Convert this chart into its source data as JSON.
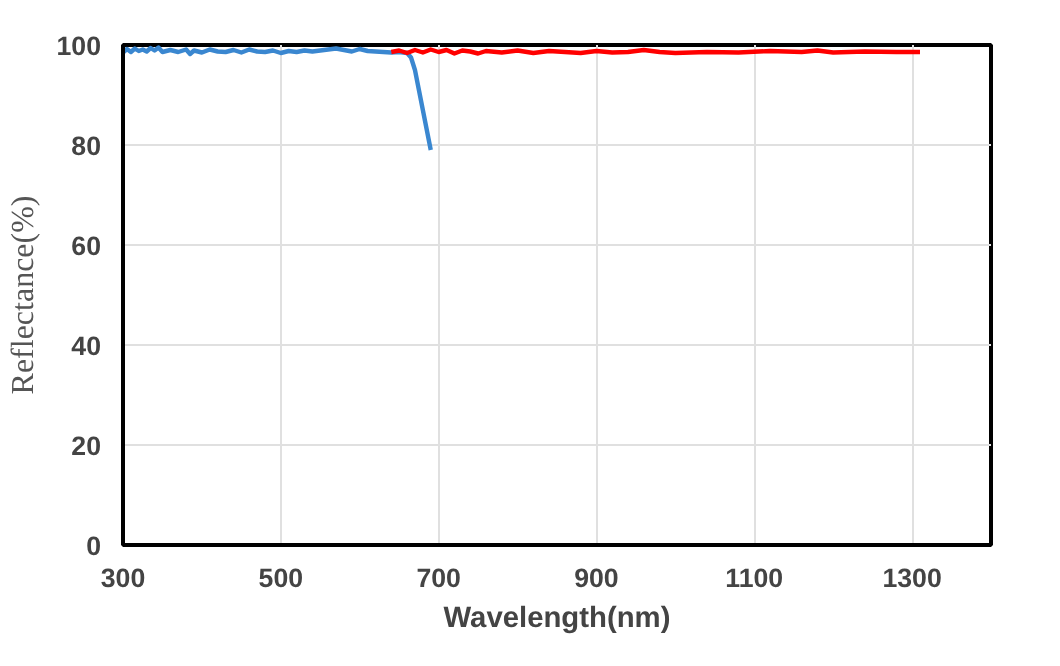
{
  "chart_data": {
    "type": "line",
    "xlabel": "Wavelength(nm)",
    "ylabel": "Reflectance(%)",
    "xlim": [
      300,
      1400
    ],
    "ylim": [
      0,
      100
    ],
    "xticks": [
      300,
      500,
      700,
      900,
      1100,
      1300
    ],
    "yticks": [
      0,
      20,
      40,
      60,
      80,
      100
    ],
    "grid": true,
    "line_style": "solid",
    "series": [
      {
        "color": "#3a87d0",
        "x": [
          300,
          305,
          310,
          315,
          320,
          325,
          330,
          335,
          340,
          345,
          350,
          360,
          370,
          380,
          385,
          390,
          400,
          410,
          420,
          430,
          440,
          450,
          460,
          470,
          480,
          490,
          500,
          510,
          520,
          530,
          540,
          550,
          560,
          570,
          580,
          590,
          600,
          610,
          620,
          630,
          640,
          650,
          660,
          665,
          670,
          675,
          680,
          685,
          690
        ],
        "values": [
          98.5,
          99.2,
          98.6,
          99.3,
          98.8,
          99.1,
          98.7,
          99.4,
          98.9,
          99.5,
          98.6,
          99.0,
          98.6,
          99.1,
          98.2,
          98.9,
          98.5,
          99.1,
          98.7,
          98.6,
          99.0,
          98.5,
          99.1,
          98.7,
          98.6,
          98.9,
          98.4,
          98.8,
          98.6,
          98.9,
          98.7,
          98.9,
          99.1,
          99.3,
          99.0,
          98.7,
          99.2,
          98.8,
          98.7,
          98.6,
          98.5,
          98.6,
          98.4,
          97.5,
          95,
          91,
          87,
          83,
          79
        ]
      },
      {
        "color": "#ff0000",
        "x": [
          640,
          650,
          660,
          670,
          680,
          690,
          700,
          710,
          720,
          730,
          740,
          750,
          760,
          780,
          800,
          820,
          840,
          860,
          880,
          900,
          920,
          940,
          960,
          980,
          1000,
          1040,
          1080,
          1120,
          1160,
          1180,
          1200,
          1240,
          1280,
          1310
        ],
        "values": [
          98.6,
          98.9,
          98.4,
          99.0,
          98.5,
          99.1,
          98.6,
          99.0,
          98.3,
          98.9,
          98.7,
          98.3,
          98.8,
          98.5,
          98.9,
          98.4,
          98.8,
          98.6,
          98.4,
          98.8,
          98.5,
          98.6,
          99.0,
          98.6,
          98.4,
          98.6,
          98.5,
          98.8,
          98.6,
          98.9,
          98.5,
          98.7,
          98.6,
          98.6
        ]
      }
    ]
  }
}
